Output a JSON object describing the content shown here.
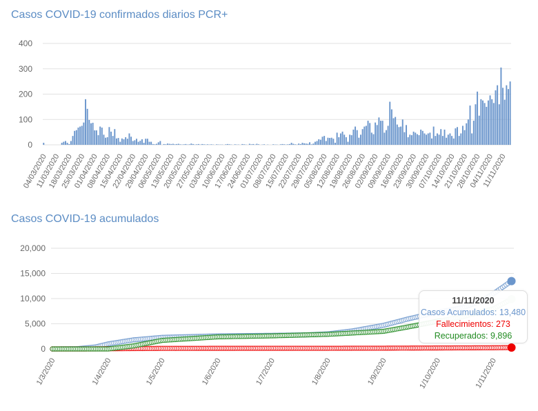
{
  "chart_data": [
    {
      "type": "bar",
      "title": "Casos COVID-19 confirmados diarios PCR+",
      "ylim": [
        0,
        400
      ],
      "yticks": [
        "0",
        "100",
        "200",
        "300",
        "400"
      ],
      "grid": true,
      "color": "#6b96cc",
      "start_date": "04/03/2020",
      "xtick_labels": [
        "04/03/2020",
        "11/03/2020",
        "18/03/2020",
        "25/03/2020",
        "01/04/2020",
        "08/04/2020",
        "15/04/2020",
        "22/04/2020",
        "29/04/2020",
        "06/05/2020",
        "13/05/2020",
        "20/05/2020",
        "27/05/2020",
        "03/06/2020",
        "10/06/2020",
        "17/06/2020",
        "24/06/2020",
        "01/07/2020",
        "08/07/2020",
        "15/07/2020",
        "22/07/2020",
        "29/07/2020",
        "05/08/2020",
        "12/08/2020",
        "19/08/2020",
        "26/08/2020",
        "02/09/2020",
        "09/09/2020",
        "16/09/2020",
        "23/09/2020",
        "30/09/2020",
        "07/10/2020",
        "14/10/2020",
        "21/10/2020",
        "28/10/2020",
        "04/11/2020",
        "11/11/2020"
      ],
      "values": [
        8,
        0,
        0,
        0,
        0,
        0,
        0,
        0,
        0,
        0,
        8,
        12,
        15,
        8,
        3,
        15,
        35,
        55,
        58,
        68,
        72,
        75,
        88,
        180,
        142,
        98,
        85,
        87,
        57,
        57,
        38,
        72,
        68,
        40,
        28,
        30,
        70,
        52,
        35,
        62,
        25,
        27,
        12,
        25,
        22,
        30,
        24,
        45,
        32,
        15,
        18,
        24,
        12,
        16,
        22,
        8,
        24,
        24,
        12,
        12,
        3,
        2,
        4,
        10,
        15,
        0,
        3,
        2,
        5,
        4,
        3,
        4,
        2,
        3,
        4,
        2,
        1,
        2,
        3,
        1,
        2,
        5,
        3,
        1,
        2,
        3,
        1,
        3,
        2,
        1,
        2,
        1,
        2,
        1,
        0,
        2,
        1,
        1,
        1,
        0,
        2,
        3,
        2,
        1,
        0,
        2,
        1,
        1,
        0,
        3,
        2,
        1,
        0,
        4,
        2,
        3,
        1,
        4,
        2,
        0,
        1,
        2,
        0,
        1,
        0,
        0,
        2,
        1,
        1,
        0,
        2,
        3,
        2,
        1,
        2,
        3,
        8,
        4,
        2,
        1,
        5,
        3,
        8,
        6,
        5,
        4,
        10,
        2,
        5,
        12,
        15,
        22,
        20,
        32,
        35,
        15,
        28,
        27,
        28,
        24,
        8,
        48,
        30,
        45,
        52,
        40,
        30,
        12,
        40,
        38,
        60,
        72,
        58,
        28,
        40,
        62,
        72,
        75,
        95,
        86,
        48,
        42,
        88,
        78,
        108,
        95,
        95,
        48,
        58,
        75,
        170,
        140,
        105,
        110,
        80,
        70,
        72,
        100,
        50,
        78,
        30,
        40,
        38,
        52,
        48,
        42,
        38,
        60,
        55,
        45,
        40,
        45,
        48,
        25,
        72,
        35,
        45,
        40,
        62,
        35,
        60,
        28,
        40,
        45,
        35,
        25,
        65,
        70,
        35,
        45,
        75,
        58,
        85,
        100,
        155,
        45,
        95,
        160,
        210,
        115,
        180,
        175,
        165,
        150,
        175,
        195,
        180,
        165,
        215,
        235,
        160,
        305,
        225,
        178,
        235,
        220,
        250
      ]
    },
    {
      "type": "line",
      "title": "Casos COVID-19 acumulados",
      "ylim": [
        0,
        20000
      ],
      "yticks": [
        "0",
        "5,000",
        "10,000",
        "15,000",
        "20,000"
      ],
      "grid": true,
      "xtick_labels": [
        "1/3/2020",
        "1/4/2020",
        "1/5/2020",
        "1/6/2020",
        "1/7/2020",
        "1/8/2020",
        "1/9/2020",
        "1/10/2020",
        "1/11/2020"
      ],
      "series": [
        {
          "name": "Casos Acumulados",
          "color": "#6b96cc",
          "points": [
            [
              "2020-03-01",
              0
            ],
            [
              "2020-03-15",
              50
            ],
            [
              "2020-03-25",
              400
            ],
            [
              "2020-04-01",
              1000
            ],
            [
              "2020-04-15",
              1800
            ],
            [
              "2020-05-01",
              2300
            ],
            [
              "2020-06-01",
              2600
            ],
            [
              "2020-07-01",
              2700
            ],
            [
              "2020-07-20",
              2800
            ],
            [
              "2020-08-01",
              3000
            ],
            [
              "2020-08-15",
              3600
            ],
            [
              "2020-09-01",
              4700
            ],
            [
              "2020-09-15",
              6000
            ],
            [
              "2020-10-01",
              7300
            ],
            [
              "2020-10-15",
              8200
            ],
            [
              "2020-10-25",
              9500
            ],
            [
              "2020-11-01",
              11000
            ],
            [
              "2020-11-11",
              13480
            ]
          ]
        },
        {
          "name": "Fallecimientos",
          "color": "#ee0000",
          "points": [
            [
              "2020-03-20",
              0
            ],
            [
              "2020-04-01",
              40
            ],
            [
              "2020-05-01",
              110
            ],
            [
              "2020-06-01",
              120
            ],
            [
              "2020-08-01",
              130
            ],
            [
              "2020-09-01",
              150
            ],
            [
              "2020-10-01",
              190
            ],
            [
              "2020-11-01",
              240
            ],
            [
              "2020-11-11",
              273
            ]
          ]
        },
        {
          "name": "Recuperados",
          "color": "#228b22",
          "points": [
            [
              "2020-04-01",
              0
            ],
            [
              "2020-04-15",
              600
            ],
            [
              "2020-05-01",
              1700
            ],
            [
              "2020-06-01",
              2400
            ],
            [
              "2020-07-01",
              2600
            ],
            [
              "2020-08-01",
              2900
            ],
            [
              "2020-09-01",
              3500
            ],
            [
              "2020-09-15",
              4400
            ],
            [
              "2020-10-01",
              5500
            ],
            [
              "2020-10-15",
              6400
            ],
            [
              "2020-11-01",
              8000
            ],
            [
              "2020-11-11",
              9896
            ]
          ]
        }
      ],
      "tooltip": {
        "date": "11/11/2020",
        "lines": [
          "Casos Acumulados: 13,480",
          "Fallecimientos: 273",
          "Recuperados: 9,896"
        ]
      }
    }
  ]
}
